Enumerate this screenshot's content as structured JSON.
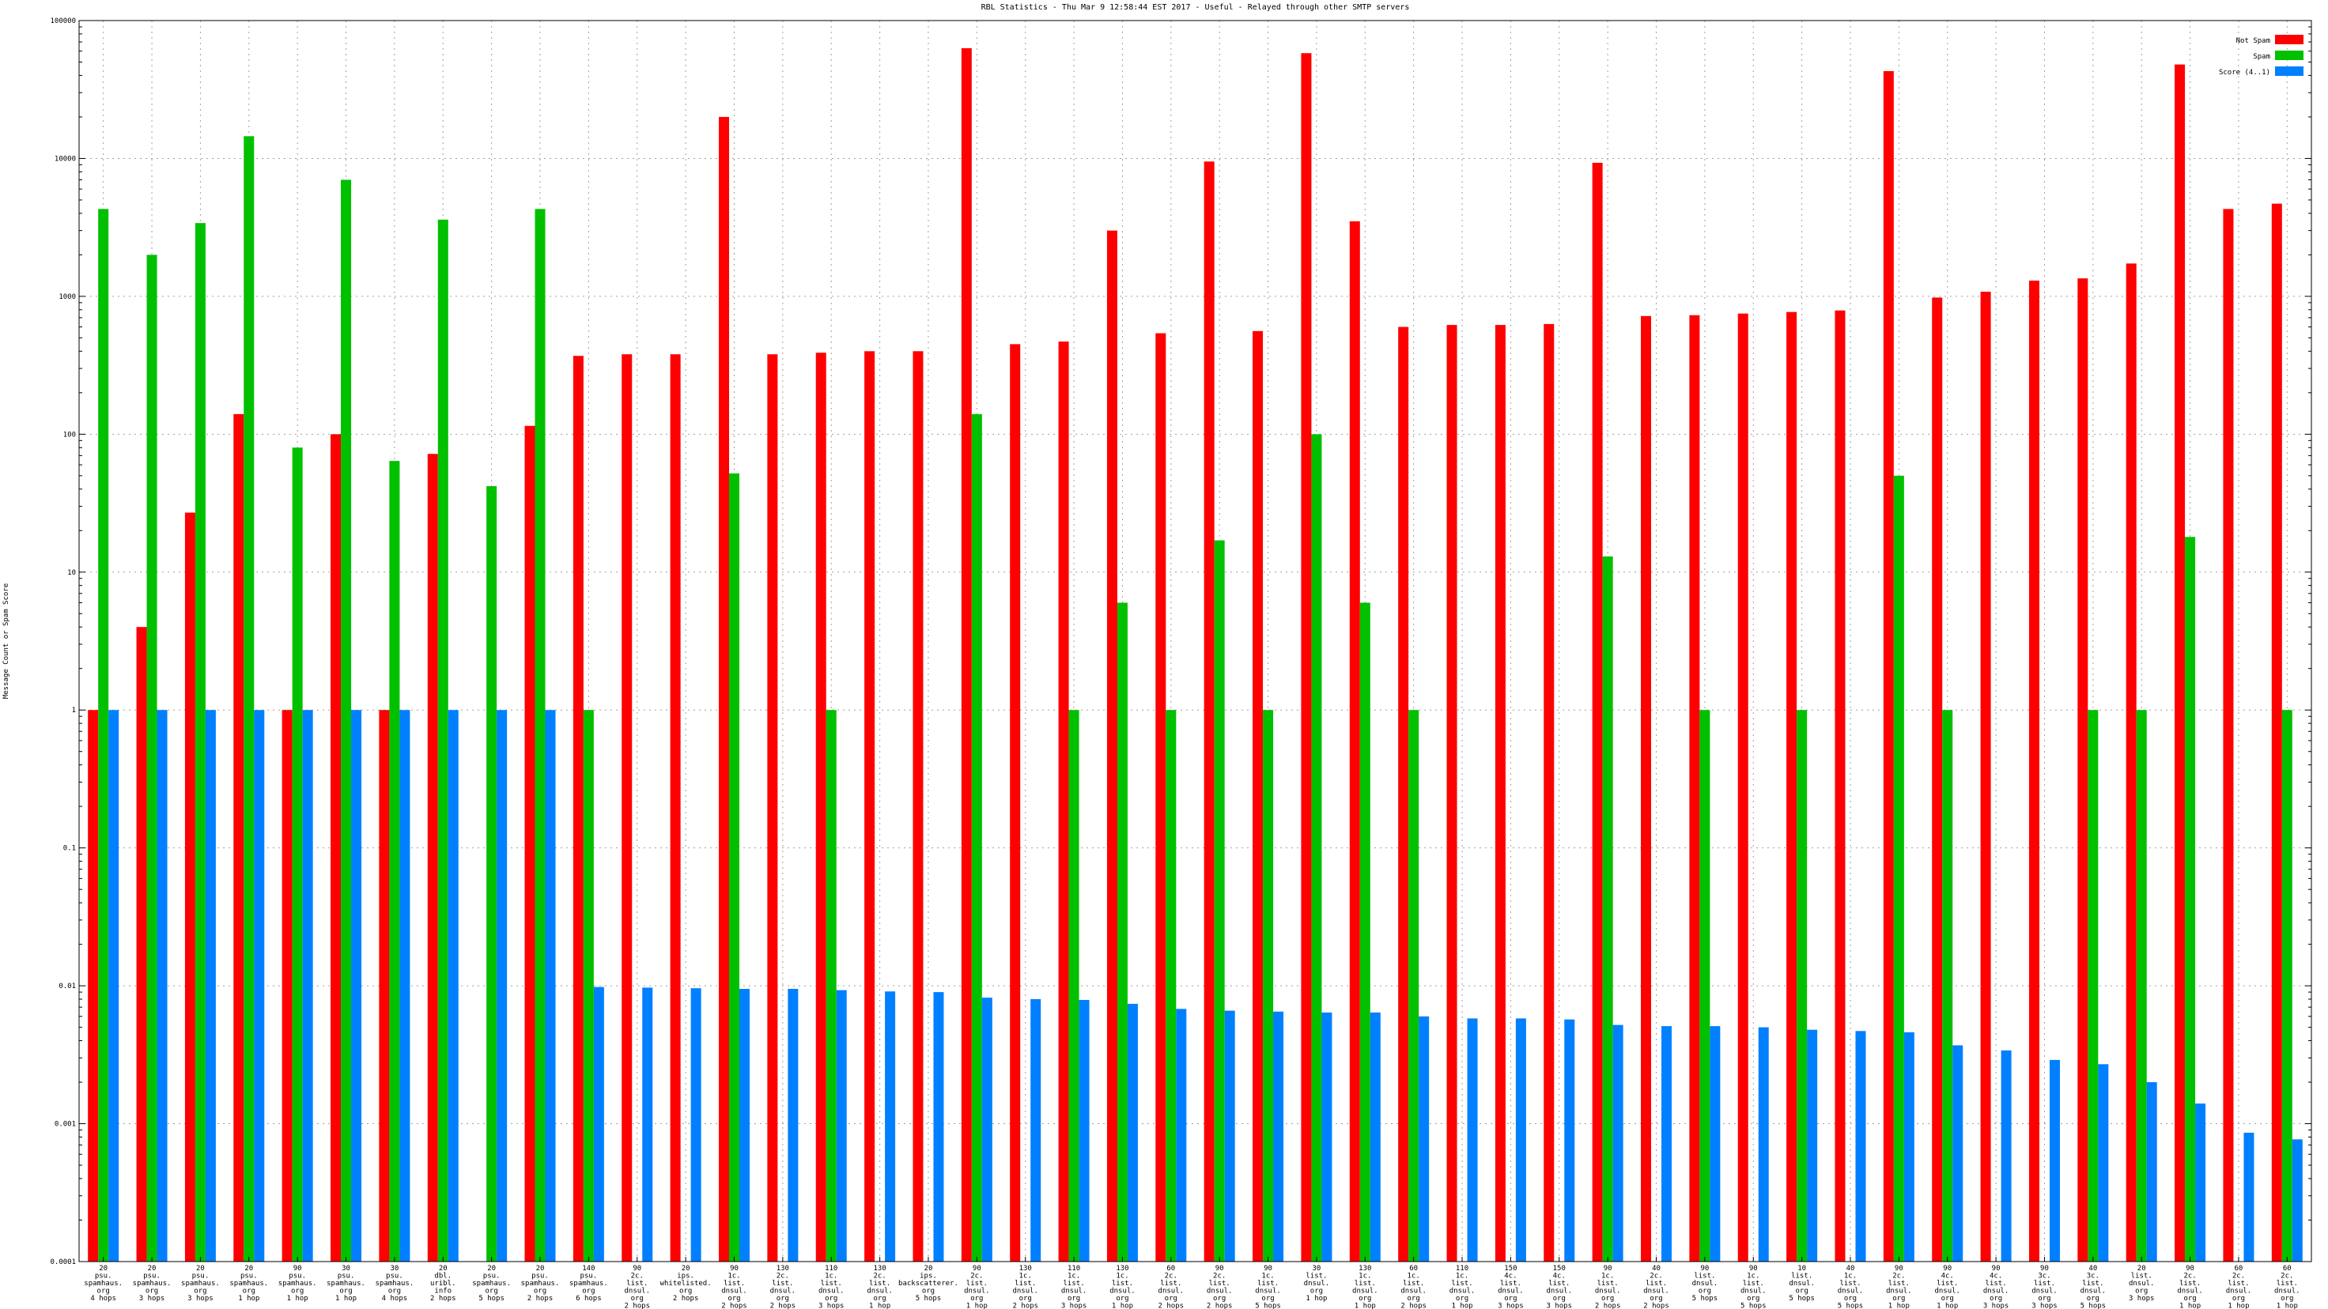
{
  "chart_data": {
    "type": "bar",
    "title": "RBL Statistics - Thu Mar  9 12:58:44 EST 2017 - Useful - Relayed through other SMTP servers",
    "xlabel": "",
    "ylabel": "Message Count or Spam Score",
    "yscale": "log",
    "ylim": [
      0.0001,
      100000
    ],
    "yticks": [
      "0.0001",
      "0.001",
      "0.01",
      "0.1",
      "1",
      "10",
      "100",
      "1000",
      "10000",
      "100000"
    ],
    "grid": true,
    "legend_position": "top-right",
    "colors": {
      "not_spam": "#ff0000",
      "spam": "#00c000",
      "score": "#0080ff"
    },
    "categories": [
      [
        "20",
        "psu.",
        "spamhaus.",
        "org",
        "4 hops"
      ],
      [
        "20",
        "psu.",
        "spamhaus.",
        "org",
        "3 hops"
      ],
      [
        "20",
        "psu.",
        "spamhaus.",
        "org",
        "3 hops"
      ],
      [
        "20",
        "psu.",
        "spamhaus.",
        "org",
        "1 hop"
      ],
      [
        "90",
        "psu.",
        "spamhaus.",
        "org",
        "1 hop"
      ],
      [
        "30",
        "psu.",
        "spamhaus.",
        "org",
        "1 hop"
      ],
      [
        "30",
        "psu.",
        "spamhaus.",
        "org",
        "4 hops"
      ],
      [
        "20",
        "dbl.",
        "uribl.",
        "info",
        "2 hops"
      ],
      [
        "20",
        "psu.",
        "spamhaus.",
        "org",
        "5 hops"
      ],
      [
        "20",
        "psu.",
        "spamhaus.",
        "org",
        "2 hops"
      ],
      [
        "140",
        "psu.",
        "spamhaus.",
        "org",
        "6 hops"
      ],
      [
        "90",
        "2c.",
        "list.",
        "dnsul.",
        "org",
        "2 hops"
      ],
      [
        "20",
        "ips.",
        "whitelisted.",
        "org",
        "2 hops"
      ],
      [
        "90",
        "1c.",
        "list.",
        "dnsul.",
        "org",
        "2 hops"
      ],
      [
        "130",
        "2c.",
        "list.",
        "dnsul.",
        "org",
        "2 hops"
      ],
      [
        "110",
        "1c.",
        "list.",
        "dnsul.",
        "org",
        "3 hops"
      ],
      [
        "130",
        "2c.",
        "list.",
        "dnsul.",
        "org",
        "1 hop"
      ],
      [
        "20",
        "ips.",
        "backscatterer.",
        "org",
        "5 hops"
      ],
      [
        "90",
        "2c.",
        "list.",
        "dnsul.",
        "org",
        "1 hop"
      ],
      [
        "130",
        "1c.",
        "list.",
        "dnsul.",
        "org",
        "2 hops"
      ],
      [
        "110",
        "1c.",
        "list.",
        "dnsul.",
        "org",
        "3 hops"
      ],
      [
        "130",
        "1c.",
        "list.",
        "dnsul.",
        "org",
        "1 hop"
      ],
      [
        "60",
        "2c.",
        "list.",
        "dnsul.",
        "org",
        "2 hops"
      ],
      [
        "90",
        "2c.",
        "list.",
        "dnsul.",
        "org",
        "2 hops"
      ],
      [
        "90",
        "1c.",
        "list.",
        "dnsul.",
        "org",
        "5 hops"
      ],
      [
        "30",
        "list.",
        "dnsul.",
        "org",
        "1 hop"
      ],
      [
        "130",
        "1c.",
        "list.",
        "dnsul.",
        "org",
        "1 hop"
      ],
      [
        "60",
        "1c.",
        "list.",
        "dnsul.",
        "org",
        "2 hops"
      ],
      [
        "110",
        "1c.",
        "list.",
        "dnsul.",
        "org",
        "1 hop"
      ],
      [
        "150",
        "4c.",
        "list.",
        "dnsul.",
        "org",
        "3 hops"
      ],
      [
        "150",
        "4c.",
        "list.",
        "dnsul.",
        "org",
        "3 hops"
      ],
      [
        "90",
        "1c.",
        "list.",
        "dnsul.",
        "org",
        "2 hops"
      ],
      [
        "40",
        "2c.",
        "list.",
        "dnsul.",
        "org",
        "2 hops"
      ],
      [
        "90",
        "list.",
        "dnsul.",
        "org",
        "5 hops"
      ],
      [
        "90",
        "1c.",
        "list.",
        "dnsul.",
        "org",
        "5 hops"
      ],
      [
        "10",
        "list.",
        "dnsul.",
        "org",
        "5 hops"
      ],
      [
        "40",
        "1c.",
        "list.",
        "dnsul.",
        "org",
        "5 hops"
      ],
      [
        "90",
        "2c.",
        "list.",
        "dnsul.",
        "org",
        "1 hop"
      ],
      [
        "90",
        "4c.",
        "list.",
        "dnsul.",
        "org",
        "1 hop"
      ],
      [
        "90",
        "4c.",
        "list.",
        "dnsul.",
        "org",
        "3 hops"
      ],
      [
        "90",
        "3c.",
        "list.",
        "dnsul.",
        "org",
        "3 hops"
      ],
      [
        "40",
        "3c.",
        "list.",
        "dnsul.",
        "org",
        "5 hops"
      ],
      [
        "20",
        "list.",
        "dnsul.",
        "org",
        "3 hops"
      ],
      [
        "90",
        "2c.",
        "list.",
        "dnsul.",
        "org",
        "1 hop"
      ],
      [
        "60",
        "2c.",
        "list.",
        "dnsul.",
        "org",
        "1 hop"
      ],
      [
        "60",
        "2c.",
        "list.",
        "dnsul.",
        "org",
        "1 hop"
      ]
    ],
    "series": [
      {
        "name": "Not Spam",
        "color": "#ff0000",
        "values": [
          1,
          4,
          27,
          140,
          1,
          100,
          1,
          72,
          null,
          115,
          370,
          380,
          380,
          20000,
          380,
          390,
          400,
          400,
          63000,
          450,
          470,
          3000,
          540,
          9500,
          560,
          58000,
          3500,
          600,
          620,
          620,
          630,
          9300,
          720,
          730,
          750,
          770,
          790,
          43000,
          980,
          1080,
          1300,
          1350,
          1730,
          48000,
          4300,
          4700
        ]
      },
      {
        "name": "Spam",
        "color": "#00c000",
        "values": [
          4300,
          2000,
          3400,
          14500,
          80,
          7000,
          64,
          3600,
          42,
          4300,
          1,
          null,
          null,
          52,
          null,
          1,
          null,
          null,
          140,
          null,
          1,
          6,
          1,
          17,
          1,
          100,
          6,
          1,
          null,
          null,
          null,
          13,
          null,
          1,
          null,
          1,
          null,
          50,
          1,
          null,
          null,
          1,
          1,
          18,
          null,
          1
        ]
      },
      {
        "name": "Score (4..1)",
        "color": "#0080ff",
        "values": [
          1,
          1,
          1,
          1,
          1,
          1,
          1,
          1,
          1,
          1,
          0.0098,
          0.0097,
          0.0096,
          0.0095,
          0.0095,
          0.0093,
          0.0091,
          0.009,
          0.0082,
          0.008,
          0.0079,
          0.0074,
          0.0068,
          0.0066,
          0.0065,
          0.0064,
          0.0064,
          0.006,
          0.0058,
          0.0058,
          0.0057,
          0.0052,
          0.0051,
          0.0051,
          0.005,
          0.0048,
          0.0047,
          0.0046,
          0.0037,
          0.0034,
          0.0029,
          0.0027,
          0.002,
          0.0014,
          0.00086,
          0.00077
        ]
      }
    ]
  }
}
